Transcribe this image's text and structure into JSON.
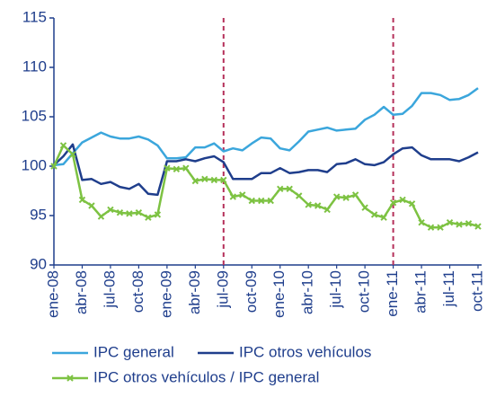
{
  "chart_data": {
    "type": "line",
    "categories": [
      "ene-08",
      null,
      null,
      "abr-08",
      null,
      null,
      "jul-08",
      null,
      null,
      "oct-08",
      null,
      null,
      "ene-09",
      null,
      null,
      "abr-09",
      null,
      null,
      "jul-09",
      null,
      null,
      "oct-09",
      null,
      null,
      "ene-10",
      null,
      null,
      "abr-10",
      null,
      null,
      "jul-10",
      null,
      null,
      "oct-10",
      null,
      null,
      "ene-11",
      null,
      null,
      "abr-11",
      null,
      null,
      "jul-11",
      null,
      null,
      "oct-11"
    ],
    "series": [
      {
        "name": "IPC general",
        "color": "#3ba6dc",
        "values": [
          100.1,
          100.2,
          101.3,
          102.4,
          102.9,
          103.4,
          103.0,
          102.8,
          102.8,
          103.0,
          102.7,
          102.1,
          100.8,
          100.8,
          100.9,
          101.9,
          101.9,
          102.3,
          101.5,
          101.8,
          101.6,
          102.3,
          102.9,
          102.8,
          101.8,
          101.6,
          102.5,
          103.5,
          103.7,
          103.9,
          103.6,
          103.7,
          103.8,
          104.7,
          105.2,
          106.0,
          105.2,
          105.3,
          106.1,
          107.4,
          107.4,
          107.2,
          106.7,
          106.8,
          107.2,
          107.9
        ]
      },
      {
        "name": "IPC otros vehículos",
        "color": "#1f3e8c",
        "values": [
          100.1,
          101.0,
          102.2,
          98.6,
          98.7,
          98.2,
          98.4,
          97.9,
          97.7,
          98.2,
          97.2,
          97.1,
          100.5,
          100.5,
          100.7,
          100.5,
          100.8,
          101.0,
          100.4,
          98.7,
          98.7,
          98.7,
          99.3,
          99.3,
          99.8,
          99.3,
          99.4,
          99.6,
          99.6,
          99.4,
          100.2,
          100.3,
          100.7,
          100.2,
          100.1,
          100.4,
          101.2,
          101.8,
          101.9,
          101.1,
          100.7,
          100.7,
          100.7,
          100.5,
          100.9,
          101.4
        ]
      },
      {
        "name": "IPC otros vehículos / IPC general",
        "color": "#7dc242",
        "marker": "x",
        "values": [
          100.0,
          102.1,
          101.2,
          96.6,
          96.0,
          94.9,
          95.6,
          95.3,
          95.2,
          95.3,
          94.8,
          95.1,
          99.8,
          99.7,
          99.8,
          98.5,
          98.7,
          98.6,
          98.6,
          96.9,
          97.1,
          96.5,
          96.5,
          96.5,
          97.7,
          97.7,
          97.0,
          96.1,
          96.0,
          95.6,
          96.9,
          96.8,
          97.1,
          95.8,
          95.1,
          94.8,
          96.3,
          96.6,
          96.2,
          94.3,
          93.8,
          93.8,
          94.3,
          94.1,
          94.2,
          93.9
        ]
      }
    ],
    "ylim": [
      90,
      115
    ],
    "yticks": [
      90,
      95,
      100,
      105,
      110,
      115
    ],
    "grid": false,
    "vlines": [
      "jul-09",
      "ene-11"
    ],
    "vline_color": "#b5305a",
    "legend": "bottom"
  }
}
